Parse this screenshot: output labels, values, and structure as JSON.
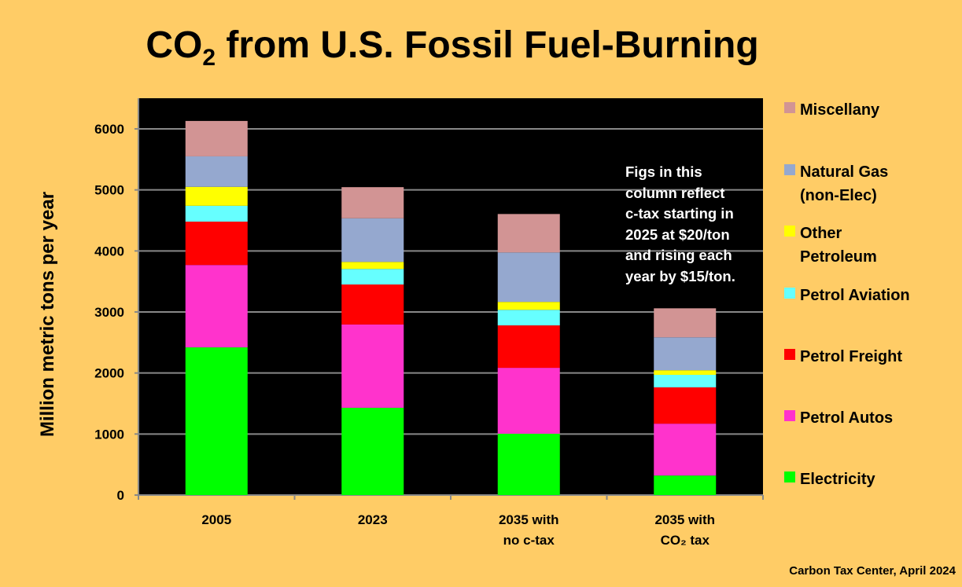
{
  "title": {
    "prefix": "CO",
    "sub": "2",
    "rest": " from U.S. Fossil Fuel-Burning"
  },
  "footer": "Carbon Tax Center, April 2024",
  "chart_data": {
    "type": "bar",
    "stacked": true,
    "ylabel": "Million metric tons per year",
    "ylim": [
      0,
      6500
    ],
    "yticks": [
      0,
      1000,
      2000,
      3000,
      4000,
      5000,
      6000
    ],
    "grid": true,
    "legend_position": "right",
    "background": "#000000",
    "categories": [
      [
        "2005"
      ],
      [
        "2023"
      ],
      [
        "2035 with",
        "no c-tax"
      ],
      [
        "2035 with",
        "CO₂ tax"
      ]
    ],
    "series": [
      {
        "name": "Electricity",
        "color": "#00FF00",
        "values": [
          2420,
          1430,
          1005,
          320
        ]
      },
      {
        "name": "Petrol Autos",
        "color": "#FF33CC",
        "values": [
          1350,
          1365,
          1080,
          850
        ]
      },
      {
        "name": "Petrol Freight",
        "color": "#FF0000",
        "values": [
          710,
          655,
          695,
          595
        ]
      },
      {
        "name": "Petrol Aviation",
        "color": "#66FFFF",
        "values": [
          260,
          255,
          255,
          205
        ]
      },
      {
        "name": "Other Petroleum",
        "color": "#FFFF00",
        "values": [
          310,
          115,
          130,
          75
        ]
      },
      {
        "name": "Natural Gas (non-Elec)",
        "color": "#95A8CF",
        "values": [
          500,
          715,
          810,
          540
        ]
      },
      {
        "name": "Miscellany",
        "color": "#D29494",
        "values": [
          580,
          510,
          630,
          475
        ]
      }
    ],
    "legend_lines": [
      [
        "Electricity"
      ],
      [
        "Petrol Autos"
      ],
      [
        "Petrol Freight"
      ],
      [
        "Petrol Aviation"
      ],
      [
        "Other",
        "Petroleum"
      ],
      [
        "Natural Gas",
        "(non-Elec)"
      ],
      [
        "Miscellany"
      ]
    ],
    "annotation": "Figs in this\ncolumn reflect\nc-tax starting in\n2025 at $20/ton\nand rising each\nyear by $15/ton."
  }
}
